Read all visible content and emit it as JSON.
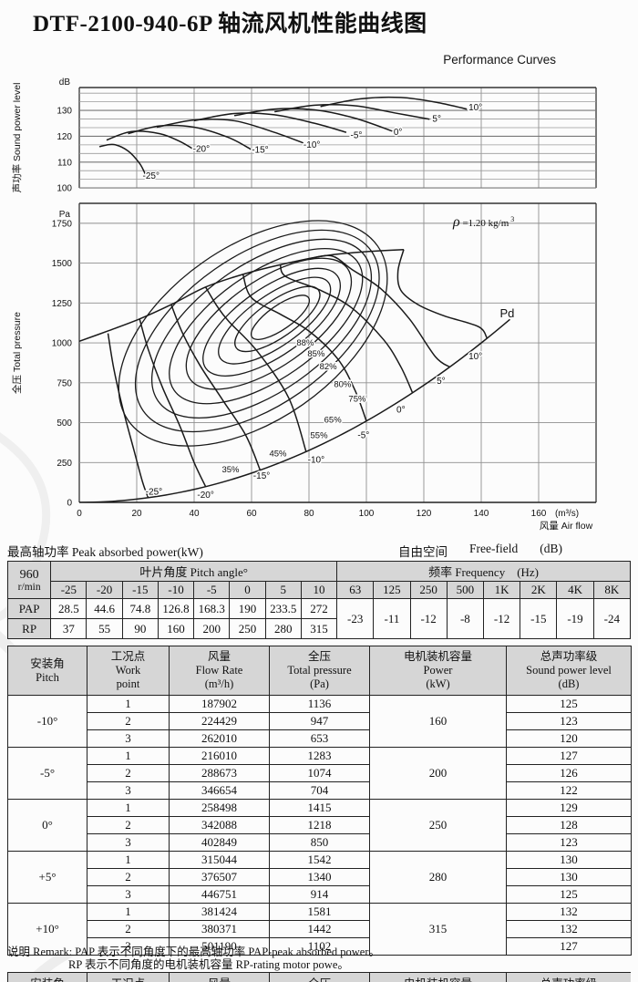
{
  "title": "DTF-2100-940-6P 轴流风机性能曲线图",
  "subtitle": "Performance Curves",
  "tables_titles": {
    "left": "最高轴功率 Peak absorbed power(kW)",
    "right_cn": "自由空间",
    "right_en": "Free-field",
    "right_unit": "(dB)"
  },
  "power_table": {
    "rpm": "960",
    "rpm_unit": "r/min",
    "pitch_header": "叶片角度 Pitch angle°",
    "freq_header": "频率 Frequency　(Hz)",
    "angles": [
      "-25",
      "-20",
      "-15",
      "-10",
      "-5",
      "0",
      "5",
      "10"
    ],
    "frequencies": [
      "63",
      "125",
      "250",
      "500",
      "1K",
      "2K",
      "4K",
      "8K"
    ],
    "pap_label": "PAP",
    "rp_label": "RP",
    "pap": [
      "28.5",
      "44.6",
      "74.8",
      "126.8",
      "168.3",
      "190",
      "233.5",
      "272"
    ],
    "rp": [
      "37",
      "55",
      "90",
      "160",
      "200",
      "250",
      "280",
      "315"
    ],
    "freq_values": [
      "-23",
      "-11",
      "-12",
      "-8",
      "-12",
      "-15",
      "-19",
      "-24"
    ]
  },
  "work_table": {
    "headers": [
      [
        "安装角",
        "Pitch"
      ],
      [
        "工况点",
        "Work",
        "point"
      ],
      [
        "风量",
        "Flow Rate",
        "(m³/h)"
      ],
      [
        "全压",
        "Total pressure",
        "(Pa)"
      ],
      [
        "电机装机容量",
        "Power",
        "(kW)"
      ],
      [
        "总声功率级",
        "Sound power level",
        "(dB)"
      ]
    ],
    "groups": [
      {
        "pitch": "-10°",
        "power": "160",
        "rows": [
          [
            "1",
            "187902",
            "1136",
            "125"
          ],
          [
            "2",
            "224429",
            "947",
            "123"
          ],
          [
            "3",
            "262010",
            "653",
            "120"
          ]
        ]
      },
      {
        "pitch": "-5°",
        "power": "200",
        "rows": [
          [
            "1",
            "216010",
            "1283",
            "127"
          ],
          [
            "2",
            "288673",
            "1074",
            "126"
          ],
          [
            "3",
            "346654",
            "704",
            "122"
          ]
        ]
      },
      {
        "pitch": "0°",
        "power": "250",
        "rows": [
          [
            "1",
            "258498",
            "1415",
            "129"
          ],
          [
            "2",
            "342088",
            "1218",
            "128"
          ],
          [
            "3",
            "402849",
            "850",
            "123"
          ]
        ]
      },
      {
        "pitch": "+5°",
        "power": "280",
        "rows": [
          [
            "1",
            "315044",
            "1542",
            "130"
          ],
          [
            "2",
            "376507",
            "1340",
            "130"
          ],
          [
            "3",
            "446751",
            "914",
            "125"
          ]
        ]
      },
      {
        "pitch": "+10°",
        "power": "315",
        "rows": [
          [
            "1",
            "381424",
            "1581",
            "132"
          ],
          [
            "2",
            "380371",
            "1442",
            "132"
          ],
          [
            "3",
            "501190",
            "1102",
            "127"
          ]
        ]
      }
    ]
  },
  "remark": {
    "line1": "说明 Remark: PAP 表示不同角度下的最高轴功率 PAP-peak absorbed power。",
    "line2": "RP 表示不同角度的电机装机容量 RP-rating motor powe。"
  },
  "chart_data": [
    {
      "id": "sound-power-chart",
      "type": "line",
      "ylabel": "声功率 Sound power level",
      "y_unit": "dB",
      "yticks": [
        100,
        110,
        120,
        130
      ],
      "ylim": [
        100,
        138.8
      ],
      "xlim": [
        0,
        180
      ],
      "grid": true,
      "legend_position": "inline-labels",
      "series": [
        {
          "name": "-25°",
          "label_pos": [
            25,
            103.5
          ],
          "points": [
            [
              7,
              116
            ],
            [
              12,
              116.8
            ],
            [
              17,
              114.3
            ],
            [
              21,
              109.5
            ],
            [
              23,
              105.3
            ]
          ]
        },
        {
          "name": "-20°",
          "label_pos": [
            42.5,
            114
          ],
          "points": [
            [
              9.5,
              118.5
            ],
            [
              18,
              121.8
            ],
            [
              28,
              121
            ],
            [
              35,
              118
            ],
            [
              40,
              114.8
            ]
          ]
        },
        {
          "name": "-15°",
          "label_pos": [
            63,
            113.7
          ],
          "points": [
            [
              17,
              121
            ],
            [
              28,
              124
            ],
            [
              40,
              123.5
            ],
            [
              52,
              119.5
            ],
            [
              60,
              114.8
            ]
          ]
        },
        {
          "name": "-10°",
          "label_pos": [
            81,
            115.6
          ],
          "points": [
            [
              27,
              123.5
            ],
            [
              40,
              126.3
            ],
            [
              54,
              126
            ],
            [
              68,
              121.5
            ],
            [
              78,
              117.4
            ]
          ]
        },
        {
          "name": "-5°",
          "label_pos": [
            96.5,
            119.3
          ],
          "points": [
            [
              40,
              126
            ],
            [
              54,
              128.8
            ],
            [
              68,
              128.3
            ],
            [
              82,
              125
            ],
            [
              93,
              121.5
            ]
          ]
        },
        {
          "name": "0°",
          "label_pos": [
            111,
            120.5
          ],
          "points": [
            [
              54,
              128
            ],
            [
              68,
              130.5
            ],
            [
              82,
              130.2
            ],
            [
              96,
              127
            ],
            [
              109,
              122
            ]
          ]
        },
        {
          "name": "5°",
          "label_pos": [
            124.5,
            125.6
          ],
          "points": [
            [
              68,
              129.5
            ],
            [
              82,
              132
            ],
            [
              96,
              131.8
            ],
            [
              110,
              129
            ],
            [
              122,
              126.6
            ]
          ]
        },
        {
          "name": "10°",
          "label_pos": [
            138,
            130
          ],
          "points": [
            [
              84,
              131.5
            ],
            [
              98,
              134.5
            ],
            [
              112,
              135
            ],
            [
              125,
              133
            ],
            [
              135,
              130.5
            ]
          ]
        }
      ]
    },
    {
      "id": "pressure-chart",
      "type": "line",
      "ylabel": "全压 Total pressure",
      "y_unit": "Pa",
      "xlabel": "风量 Air flow",
      "x_unit": "(m³/s)",
      "xticks": [
        0,
        20,
        40,
        60,
        80,
        100,
        120,
        140,
        160
      ],
      "yticks": [
        0,
        250,
        500,
        750,
        1000,
        1250,
        1500,
        1750
      ],
      "ylim": [
        0,
        1875
      ],
      "xlim": [
        0,
        180
      ],
      "grid": true,
      "rho_annotation": {
        "symbol": "ρ",
        "text": " =1.20 kg/m",
        "sup": "3"
      },
      "pd_label": "Pd",
      "pd_label_pos": [
        146.5,
        1160
      ],
      "pd_curve_formula": "P = 0.051·Q², 0 ≤ Q ≤ 150",
      "stall_envelope": [
        [
          0,
          1010
        ],
        [
          10,
          1075
        ],
        [
          21,
          1150
        ],
        [
          32,
          1240
        ],
        [
          44,
          1350
        ],
        [
          57,
          1430
        ],
        [
          70,
          1490
        ],
        [
          85,
          1545
        ],
        [
          100,
          1572
        ],
        [
          113,
          1585
        ]
      ],
      "pitch_curves": [
        {
          "name": "-25°",
          "label_pos": [
            26,
            48
          ],
          "points": [
            [
              10,
              1060
            ],
            [
              12,
              840
            ],
            [
              15,
              600
            ],
            [
              19,
              330
            ],
            [
              22,
              130
            ],
            [
              24,
              29
            ]
          ]
        },
        {
          "name": "-20°",
          "label_pos": [
            44,
            30
          ],
          "points": [
            [
              21,
              1150
            ],
            [
              24,
              960
            ],
            [
              29,
              720
            ],
            [
              35,
              480
            ],
            [
              40,
              250
            ],
            [
              44,
              99
            ]
          ]
        },
        {
          "name": "-15°",
          "label_pos": [
            63.5,
            148
          ],
          "points": [
            [
              32,
              1240
            ],
            [
              36,
              1060
            ],
            [
              42,
              860
            ],
            [
              50,
              640
            ],
            [
              58,
              420
            ],
            [
              63,
              202
            ]
          ]
        },
        {
          "name": "-10°",
          "label_pos": [
            82.5,
            250
          ],
          "points": [
            [
              44,
              1350
            ],
            [
              48,
              1230
            ],
            [
              52,
              1136
            ],
            [
              62,
              947
            ],
            [
              73,
              653
            ],
            [
              79,
              318
            ]
          ]
        },
        {
          "name": "-5°",
          "label_pos": [
            99,
            403
          ],
          "points": [
            [
              57,
              1430
            ],
            [
              60,
              1283
            ],
            [
              70,
              1180
            ],
            [
              80,
              1074
            ],
            [
              90,
              900
            ],
            [
              96,
              704
            ],
            [
              100,
              510
            ]
          ]
        },
        {
          "name": "0°",
          "label_pos": [
            112,
            563
          ],
          "points": [
            [
              70,
              1490
            ],
            [
              72,
              1415
            ],
            [
              84,
              1330
            ],
            [
              95,
              1218
            ],
            [
              106,
              1020
            ],
            [
              112,
              850
            ],
            [
              116,
              690
            ]
          ]
        },
        {
          "name": "5°",
          "label_pos": [
            126,
            744
          ],
          "points": [
            [
              80,
              1528
            ],
            [
              88,
              1545
            ],
            [
              95,
              1460
            ],
            [
              105,
              1340
            ],
            [
              115,
              1150
            ],
            [
              124,
              914
            ],
            [
              129,
              849
            ]
          ]
        },
        {
          "name": "10°",
          "label_pos": [
            138,
            898
          ],
          "points": [
            [
              113,
              1585
            ],
            [
              111,
              1450
            ],
            [
              112,
              1330
            ],
            [
              118,
              1240
            ],
            [
              127,
              1170
            ],
            [
              139,
              1102
            ],
            [
              142,
              1030
            ]
          ]
        }
      ],
      "efficiency_contours": [
        {
          "label": "88%",
          "label_pos": [
            78.7,
            983
          ],
          "center": [
            70,
            1160
          ],
          "a": 12,
          "b": 75
        },
        {
          "label": "85%",
          "label_pos": [
            82.5,
            915
          ],
          "center": [
            69,
            1150
          ],
          "a": 17.5,
          "b": 115
        },
        {
          "label": "82%",
          "label_pos": [
            86.7,
            835
          ],
          "center": [
            68,
            1140
          ],
          "a": 23,
          "b": 160
        },
        {
          "label": "80%",
          "label_pos": [
            91.7,
            722
          ],
          "center": [
            67,
            1130
          ],
          "a": 28,
          "b": 212
        },
        {
          "label": "75%",
          "label_pos": [
            96.8,
            631
          ],
          "center": [
            66,
            1120
          ],
          "a": 33.5,
          "b": 270
        },
        {
          "label": "65%",
          "label_pos": [
            88.3,
            500
          ],
          "center": [
            65,
            1105
          ],
          "a": 39,
          "b": 332
        },
        {
          "label": "55%",
          "label_pos": [
            83.5,
            403
          ],
          "center": [
            63.5,
            1090
          ],
          "a": 44,
          "b": 400
        },
        {
          "label": "45%",
          "label_pos": [
            69.2,
            290
          ],
          "center": [
            62,
            1075
          ],
          "a": 48.5,
          "b": 470
        },
        {
          "label": "35%",
          "label_pos": [
            52.7,
            188
          ],
          "center": [
            60.5,
            1060
          ],
          "a": 53,
          "b": 545
        }
      ],
      "contour_rotation_deg": -35
    }
  ]
}
